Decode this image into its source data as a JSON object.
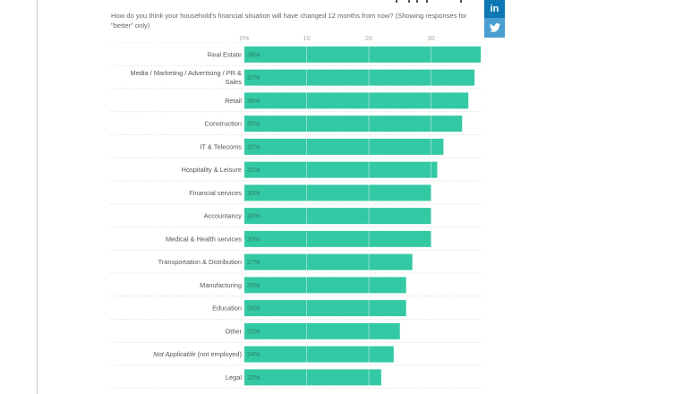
{
  "subtitle": "How do you think your household's financial situation will have changed 12 months from now? (Showing responses for \"better\" only)",
  "share": {
    "linkedin_icon": "linkedin-icon",
    "twitter_icon": "twitter-icon",
    "linkedin_color": "#0d77b5",
    "twitter_color": "#4a9fd2"
  },
  "chart_data": {
    "type": "bar",
    "orientation": "horizontal",
    "title": "",
    "subtitle": "How do you think your household's financial situation will have changed 12 months from now? (Showing responses for \"better\" only)",
    "xlabel": "",
    "ylabel": "",
    "xlim": [
      0,
      38
    ],
    "x_ticks": [
      0,
      10,
      20,
      30
    ],
    "x_tick_labels": [
      "0%",
      "10",
      "20",
      "30"
    ],
    "bar_color": "#33c9a4",
    "grid": true,
    "categories": [
      {
        "label": "Real Estate",
        "italic": false
      },
      {
        "label": "Media / Marketing / Advertising / PR &",
        "label2": "Sales",
        "italic": false
      },
      {
        "label": "Retail",
        "italic": false
      },
      {
        "label": "Construction",
        "italic": false
      },
      {
        "label": "IT & Telecoms",
        "italic": false
      },
      {
        "label": "Hospitality & Leisure",
        "italic": false
      },
      {
        "label": "Financial services",
        "italic": false
      },
      {
        "label": "Accountancy",
        "italic": false
      },
      {
        "label": "Medical & Health services",
        "italic": false
      },
      {
        "label": "Transportation & Distribution",
        "italic": false
      },
      {
        "label": "Manufacturing",
        "italic": false
      },
      {
        "label": "Education",
        "italic": false
      },
      {
        "label": "Other",
        "italic": false
      },
      {
        "label": "Not Applicable",
        "label_suffix": " (not employed)",
        "italic": true
      },
      {
        "label": "Legal",
        "italic": false
      }
    ],
    "values": [
      38,
      37,
      36,
      35,
      32,
      31,
      30,
      30,
      30,
      27,
      26,
      26,
      25,
      24,
      22
    ],
    "value_labels": [
      "38%",
      "37%",
      "36%",
      "35%",
      "32%",
      "31%",
      "30%",
      "30%",
      "30%",
      "27%",
      "26%",
      "26%",
      "25%",
      "24%",
      "22%"
    ]
  }
}
